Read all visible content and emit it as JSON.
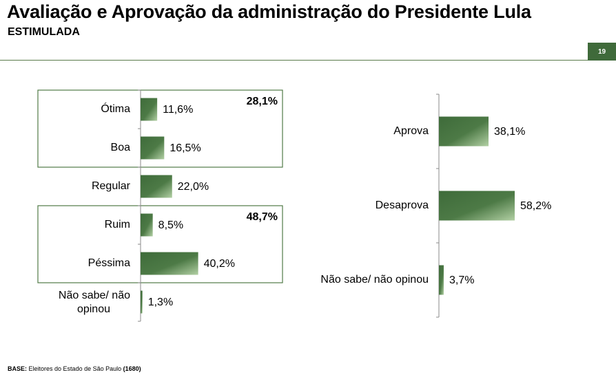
{
  "header": {
    "title": "Avaliação e Aprovação da administração do Presidente Lula",
    "subtitle": "ESTIMULADA",
    "page_number": "19"
  },
  "footer": {
    "base_label": "BASE:",
    "base_text": "Eleitores do Estado de São Paulo",
    "base_count": "(1680)"
  },
  "colors": {
    "bar_dark": "#3e6b3a",
    "bar_light": "#b2d0a4",
    "box": "#4f7a45"
  },
  "chart_data": [
    {
      "type": "bar",
      "orientation": "horizontal",
      "categories": [
        "Ótima",
        "Boa",
        "Regular",
        "Ruim",
        "Péssima",
        "Não sabe/ não opinou"
      ],
      "values": [
        11.6,
        16.5,
        22.0,
        8.5,
        40.2,
        1.3
      ],
      "value_labels": [
        "11,6%",
        "16,5%",
        "22,0%",
        "8,5%",
        "40,2%",
        "1,3%"
      ],
      "groups": [
        {
          "categories": [
            "Ótima",
            "Boa"
          ],
          "total_label": "28,1%"
        },
        {
          "categories": [
            "Ruim",
            "Péssima"
          ],
          "total_label": "48,7%"
        }
      ],
      "xlim": [
        0,
        50
      ]
    },
    {
      "type": "bar",
      "orientation": "horizontal",
      "categories": [
        "Aprova",
        "Desaprova",
        "Não sabe/ não opinou"
      ],
      "values": [
        38.1,
        58.2,
        3.7
      ],
      "value_labels": [
        "38,1%",
        "58,2%",
        "3,7%"
      ],
      "xlim": [
        0,
        60
      ]
    }
  ]
}
